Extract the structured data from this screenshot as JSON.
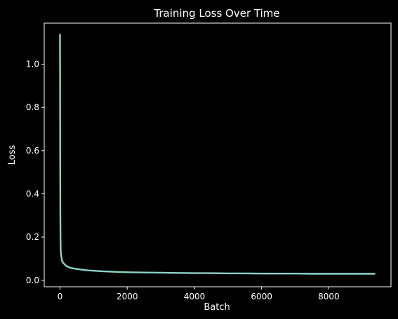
{
  "chart_data": {
    "type": "line",
    "title": "Training Loss Over Time",
    "xlabel": "Batch",
    "ylabel": "Loss",
    "xlim": [
      -470,
      9850
    ],
    "ylim": [
      -0.03,
      1.19
    ],
    "xticks": [
      0,
      2000,
      4000,
      6000,
      8000
    ],
    "yticks": [
      0.0,
      0.2,
      0.4,
      0.6,
      0.8,
      1.0
    ],
    "xtick_labels": [
      "0",
      "2000",
      "4000",
      "6000",
      "8000"
    ],
    "ytick_labels": [
      "0.0",
      "0.2",
      "0.4",
      "0.6",
      "0.8",
      "1.0"
    ],
    "grid": false,
    "background": "#000000",
    "foreground": "#ffffff",
    "series": [
      {
        "color": "#8dd3c7",
        "x": [
          0,
          5,
          10,
          15,
          20,
          30,
          40,
          50,
          60,
          80,
          100,
          130,
          160,
          200,
          250,
          300,
          400,
          500,
          600,
          700,
          800,
          1000,
          1200,
          1500,
          1800,
          2000,
          2500,
          3000,
          3500,
          4000,
          4500,
          5000,
          5500,
          6000,
          6500,
          7000,
          7500,
          8000,
          8500,
          9000,
          9380
        ],
        "values": [
          1.14,
          0.6,
          0.3,
          0.19,
          0.14,
          0.12,
          0.11,
          0.1,
          0.09,
          0.085,
          0.08,
          0.075,
          0.07,
          0.065,
          0.062,
          0.058,
          0.055,
          0.052,
          0.05,
          0.048,
          0.046,
          0.044,
          0.042,
          0.04,
          0.038,
          0.037,
          0.036,
          0.035,
          0.034,
          0.033,
          0.033,
          0.032,
          0.032,
          0.031,
          0.031,
          0.031,
          0.03,
          0.03,
          0.03,
          0.03,
          0.03
        ]
      }
    ]
  }
}
